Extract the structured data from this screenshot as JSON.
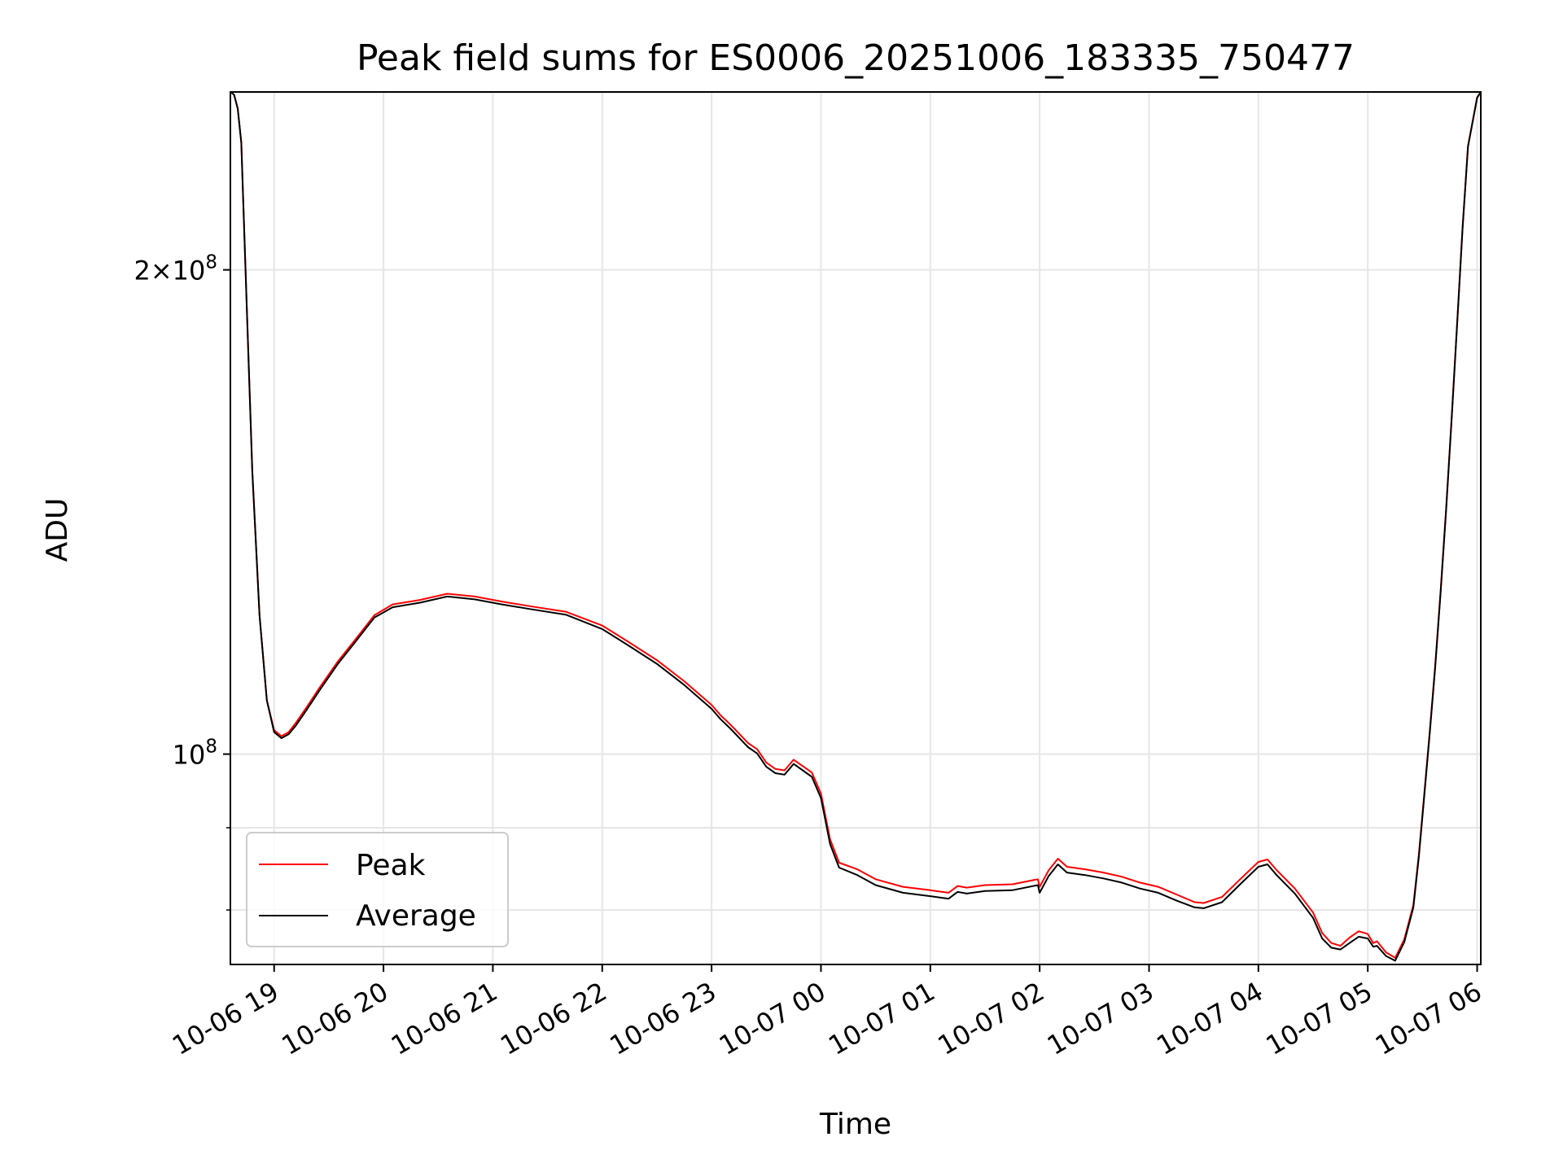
{
  "chart_data": {
    "type": "line",
    "title": "Peak field sums for ES0006_20251006_183335_750477",
    "xlabel": "Time",
    "ylabel": "ADU",
    "yscale": "log",
    "grid": true,
    "legend_position": "lower-left",
    "xlim": [
      "2025-10-06 18:36",
      "2025-10-07 06:02"
    ],
    "ylim": [
      74000000.0,
      258000000.0
    ],
    "x_ticks": [
      {
        "value": "2025-10-06 19:00",
        "label": "10-06 19"
      },
      {
        "value": "2025-10-06 20:00",
        "label": "10-06 20"
      },
      {
        "value": "2025-10-06 21:00",
        "label": "10-06 21"
      },
      {
        "value": "2025-10-06 22:00",
        "label": "10-06 22"
      },
      {
        "value": "2025-10-06 23:00",
        "label": "10-06 23"
      },
      {
        "value": "2025-10-07 00:00",
        "label": "10-07 00"
      },
      {
        "value": "2025-10-07 01:00",
        "label": "10-07 01"
      },
      {
        "value": "2025-10-07 02:00",
        "label": "10-07 02"
      },
      {
        "value": "2025-10-07 03:00",
        "label": "10-07 03"
      },
      {
        "value": "2025-10-07 04:00",
        "label": "10-07 04"
      },
      {
        "value": "2025-10-07 05:00",
        "label": "10-07 05"
      },
      {
        "value": "2025-10-07 06:00",
        "label": "10-07 06"
      }
    ],
    "y_major_ticks": [
      {
        "value": 100000000,
        "base": "10",
        "exp": "8"
      },
      {
        "value": 200000000,
        "mantissa": "2",
        "base": "10",
        "exp": "8"
      }
    ],
    "y_minor_ticks": [
      80000000,
      90000000
    ],
    "series": [
      {
        "name": "Peak",
        "color": "#ff0000",
        "x": [
          "2025-10-06 18:36",
          "2025-10-06 18:38",
          "2025-10-06 18:40",
          "2025-10-06 18:42",
          "2025-10-06 18:44",
          "2025-10-06 18:48",
          "2025-10-06 18:52",
          "2025-10-06 18:56",
          "2025-10-06 19:00",
          "2025-10-06 19:04",
          "2025-10-06 19:08",
          "2025-10-06 19:12",
          "2025-10-06 19:18",
          "2025-10-06 19:25",
          "2025-10-06 19:35",
          "2025-10-06 19:45",
          "2025-10-06 19:55",
          "2025-10-06 20:05",
          "2025-10-06 20:20",
          "2025-10-06 20:35",
          "2025-10-06 20:50",
          "2025-10-06 21:05",
          "2025-10-06 21:20",
          "2025-10-06 21:40",
          "2025-10-06 22:00",
          "2025-10-06 22:15",
          "2025-10-06 22:30",
          "2025-10-06 22:45",
          "2025-10-06 23:00",
          "2025-10-06 23:05",
          "2025-10-06 23:10",
          "2025-10-06 23:15",
          "2025-10-06 23:20",
          "2025-10-06 23:25",
          "2025-10-06 23:30",
          "2025-10-06 23:35",
          "2025-10-06 23:40",
          "2025-10-06 23:45",
          "2025-10-06 23:50",
          "2025-10-06 23:55",
          "2025-10-07 00:00",
          "2025-10-07 00:05",
          "2025-10-07 00:10",
          "2025-10-07 00:20",
          "2025-10-07 00:30",
          "2025-10-07 00:45",
          "2025-10-07 01:00",
          "2025-10-07 01:10",
          "2025-10-07 01:15",
          "2025-10-07 01:20",
          "2025-10-07 01:30",
          "2025-10-07 01:45",
          "2025-10-07 01:59",
          "2025-10-07 02:00",
          "2025-10-07 02:05",
          "2025-10-07 02:10",
          "2025-10-07 02:15",
          "2025-10-07 02:25",
          "2025-10-07 02:35",
          "2025-10-07 02:45",
          "2025-10-07 02:55",
          "2025-10-07 03:05",
          "2025-10-07 03:15",
          "2025-10-07 03:25",
          "2025-10-07 03:30",
          "2025-10-07 03:40",
          "2025-10-07 03:50",
          "2025-10-07 04:00",
          "2025-10-07 04:05",
          "2025-10-07 04:10",
          "2025-10-07 04:20",
          "2025-10-07 04:30",
          "2025-10-07 04:35",
          "2025-10-07 04:40",
          "2025-10-07 04:45",
          "2025-10-07 04:50",
          "2025-10-07 04:55",
          "2025-10-07 05:00",
          "2025-10-07 05:03",
          "2025-10-07 05:05",
          "2025-10-07 05:10",
          "2025-10-07 05:15",
          "2025-10-07 05:20",
          "2025-10-07 05:25",
          "2025-10-07 05:28",
          "2025-10-07 05:31",
          "2025-10-07 05:34",
          "2025-10-07 05:37",
          "2025-10-07 05:40",
          "2025-10-07 05:43",
          "2025-10-07 05:46",
          "2025-10-07 05:49",
          "2025-10-07 05:52",
          "2025-10-07 05:55",
          "2025-10-07 06:00",
          "2025-10-07 06:02"
        ],
        "y": [
          258000000,
          257000000,
          252000000,
          240000000,
          205000000,
          150000000,
          122000000,
          108000000,
          103500000,
          102600000,
          103200000,
          104600000,
          107000000,
          110000000,
          114200000,
          118000000,
          122000000,
          123900000,
          124700000,
          125800000,
          125300000,
          124400000,
          123600000,
          122600000,
          120200000,
          117300000,
          114400000,
          111000000,
          107300000,
          105700000,
          104400000,
          103000000,
          101600000,
          100700000,
          98800000,
          97900000,
          97700000,
          99200000,
          98300000,
          97400000,
          94500000,
          88500000,
          85600000,
          84800000,
          83600000,
          82700000,
          82300000,
          82000000,
          82800000,
          82600000,
          82900000,
          83000000,
          83600000,
          82700000,
          84700000,
          86100000,
          85100000,
          84800000,
          84400000,
          83900000,
          83200000,
          82700000,
          81800000,
          80900000,
          80800000,
          81500000,
          83600000,
          85700000,
          86000000,
          84700000,
          82500000,
          79700000,
          77400000,
          76300000,
          76000000,
          76900000,
          77600000,
          77300000,
          76300000,
          76500000,
          75300000,
          74700000,
          76700000,
          80600000,
          86600000,
          94500000,
          103300000,
          113500000,
          126400000,
          142300000,
          161800000,
          185100000,
          212400000,
          238800000,
          256000000,
          258000000
        ]
      },
      {
        "name": "Average",
        "color": "#000000",
        "x": [
          "2025-10-06 18:36",
          "2025-10-06 18:38",
          "2025-10-06 18:40",
          "2025-10-06 18:42",
          "2025-10-06 18:44",
          "2025-10-06 18:48",
          "2025-10-06 18:52",
          "2025-10-06 18:56",
          "2025-10-06 19:00",
          "2025-10-06 19:04",
          "2025-10-06 19:08",
          "2025-10-06 19:12",
          "2025-10-06 19:18",
          "2025-10-06 19:25",
          "2025-10-06 19:35",
          "2025-10-06 19:45",
          "2025-10-06 19:55",
          "2025-10-06 20:05",
          "2025-10-06 20:20",
          "2025-10-06 20:35",
          "2025-10-06 20:50",
          "2025-10-06 21:05",
          "2025-10-06 21:20",
          "2025-10-06 21:40",
          "2025-10-06 22:00",
          "2025-10-06 22:15",
          "2025-10-06 22:30",
          "2025-10-06 22:45",
          "2025-10-06 23:00",
          "2025-10-06 23:05",
          "2025-10-06 23:10",
          "2025-10-06 23:15",
          "2025-10-06 23:20",
          "2025-10-06 23:25",
          "2025-10-06 23:30",
          "2025-10-06 23:35",
          "2025-10-06 23:40",
          "2025-10-06 23:45",
          "2025-10-06 23:50",
          "2025-10-06 23:55",
          "2025-10-07 00:00",
          "2025-10-07 00:05",
          "2025-10-07 00:10",
          "2025-10-07 00:20",
          "2025-10-07 00:30",
          "2025-10-07 00:45",
          "2025-10-07 01:00",
          "2025-10-07 01:10",
          "2025-10-07 01:15",
          "2025-10-07 01:20",
          "2025-10-07 01:30",
          "2025-10-07 01:45",
          "2025-10-07 01:59",
          "2025-10-07 02:00",
          "2025-10-07 02:05",
          "2025-10-07 02:10",
          "2025-10-07 02:15",
          "2025-10-07 02:25",
          "2025-10-07 02:35",
          "2025-10-07 02:45",
          "2025-10-07 02:55",
          "2025-10-07 03:05",
          "2025-10-07 03:15",
          "2025-10-07 03:25",
          "2025-10-07 03:30",
          "2025-10-07 03:40",
          "2025-10-07 03:50",
          "2025-10-07 04:00",
          "2025-10-07 04:05",
          "2025-10-07 04:10",
          "2025-10-07 04:20",
          "2025-10-07 04:30",
          "2025-10-07 04:35",
          "2025-10-07 04:40",
          "2025-10-07 04:45",
          "2025-10-07 04:50",
          "2025-10-07 04:55",
          "2025-10-07 05:00",
          "2025-10-07 05:03",
          "2025-10-07 05:05",
          "2025-10-07 05:10",
          "2025-10-07 05:15",
          "2025-10-07 05:20",
          "2025-10-07 05:25",
          "2025-10-07 05:28",
          "2025-10-07 05:31",
          "2025-10-07 05:34",
          "2025-10-07 05:37",
          "2025-10-07 05:40",
          "2025-10-07 05:43",
          "2025-10-07 05:46",
          "2025-10-07 05:49",
          "2025-10-07 05:52",
          "2025-10-07 05:55",
          "2025-10-07 06:00",
          "2025-10-07 06:02"
        ],
        "y": [
          258000000,
          257000000,
          252000000,
          240000000,
          205000000,
          150000000,
          122000000,
          108000000,
          103200000,
          102300000,
          102900000,
          104200000,
          106600000,
          109600000,
          113800000,
          117600000,
          121600000,
          123400000,
          124200000,
          125300000,
          124800000,
          123900000,
          123100000,
          122100000,
          119600000,
          116700000,
          113800000,
          110400000,
          106700000,
          105100000,
          103800000,
          102400000,
          101000000,
          100100000,
          98200000,
          97300000,
          97100000,
          98600000,
          97700000,
          96800000,
          93900000,
          87900000,
          85000000,
          84100000,
          82900000,
          82000000,
          81600000,
          81300000,
          82100000,
          81900000,
          82200000,
          82300000,
          82900000,
          82000000,
          84000000,
          85400000,
          84400000,
          84100000,
          83700000,
          83200000,
          82500000,
          82000000,
          81100000,
          80300000,
          80200000,
          80900000,
          83000000,
          85100000,
          85400000,
          84100000,
          81900000,
          79100000,
          76800000,
          75800000,
          75600000,
          76300000,
          77000000,
          76800000,
          75900000,
          76000000,
          74900000,
          74400000,
          76400000,
          80300000,
          86300000,
          94200000,
          103000000,
          113200000,
          126100000,
          142000000,
          161500000,
          184800000,
          212100000,
          238600000,
          255800000,
          258000000
        ]
      }
    ]
  }
}
